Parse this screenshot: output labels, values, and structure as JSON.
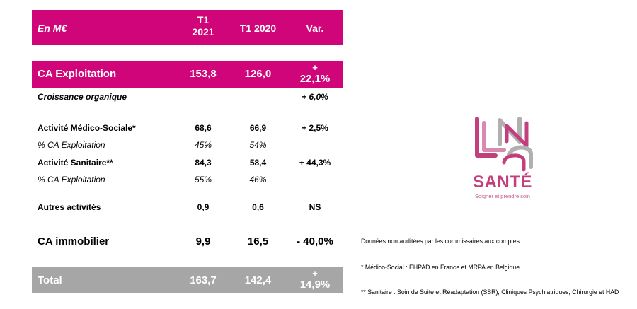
{
  "table": {
    "header": {
      "label": "En M€",
      "col1_line1": "T1",
      "col1_line2": "2021",
      "col2": "T1 2020",
      "col3": "Var."
    },
    "ca_exploitation": {
      "label": "CA Exploitation",
      "t1_2021": "153,8",
      "t1_2020": "126,0",
      "var_line1": "+",
      "var_line2": "22,1%"
    },
    "croissance": {
      "label": "Croissance organique",
      "var": "+ 6,0%"
    },
    "medico": {
      "label": "Activité Médico-Sociale*",
      "t1_2021": "68,6",
      "t1_2020": "66,9",
      "var": "+ 2,5%"
    },
    "medico_pct": {
      "label": "% CA Exploitation",
      "t1_2021": "45%",
      "t1_2020": "54%"
    },
    "sanitaire": {
      "label": "Activité Sanitaire**",
      "t1_2021": "84,3",
      "t1_2020": "58,4",
      "var": "+ 44,3%"
    },
    "sanitaire_pct": {
      "label": "% CA Exploitation",
      "t1_2021": "55%",
      "t1_2020": "46%"
    },
    "autres": {
      "label": "Autres activités",
      "t1_2021": "0,9",
      "t1_2020": "0,6",
      "var": "NS"
    },
    "immobilier": {
      "label": "CA immobilier",
      "t1_2021": "9,9",
      "t1_2020": "16,5",
      "var": "- 40,0%"
    },
    "total": {
      "label": "Total",
      "t1_2021": "163,7",
      "t1_2020": "142,4",
      "var_line1": "+",
      "var_line2": "14,9%"
    }
  },
  "logo": {
    "name": "SANTÉ",
    "tagline": "Soigner et prendre soin"
  },
  "notes": {
    "audit": "Données non auditées par les commissaires aux comptes",
    "medico": "* Médico-Social : EHPAD en France et MRPA en Belgique",
    "sanitaire": "** Sanitaire : Soin de Suite et Réadaptation (SSR), Cliniques Psychiatriques, Chirurgie et HAD"
  },
  "colors": {
    "accent": "#d0057a",
    "total_bg": "#a6a6a6",
    "logo": "#c33e7d"
  }
}
